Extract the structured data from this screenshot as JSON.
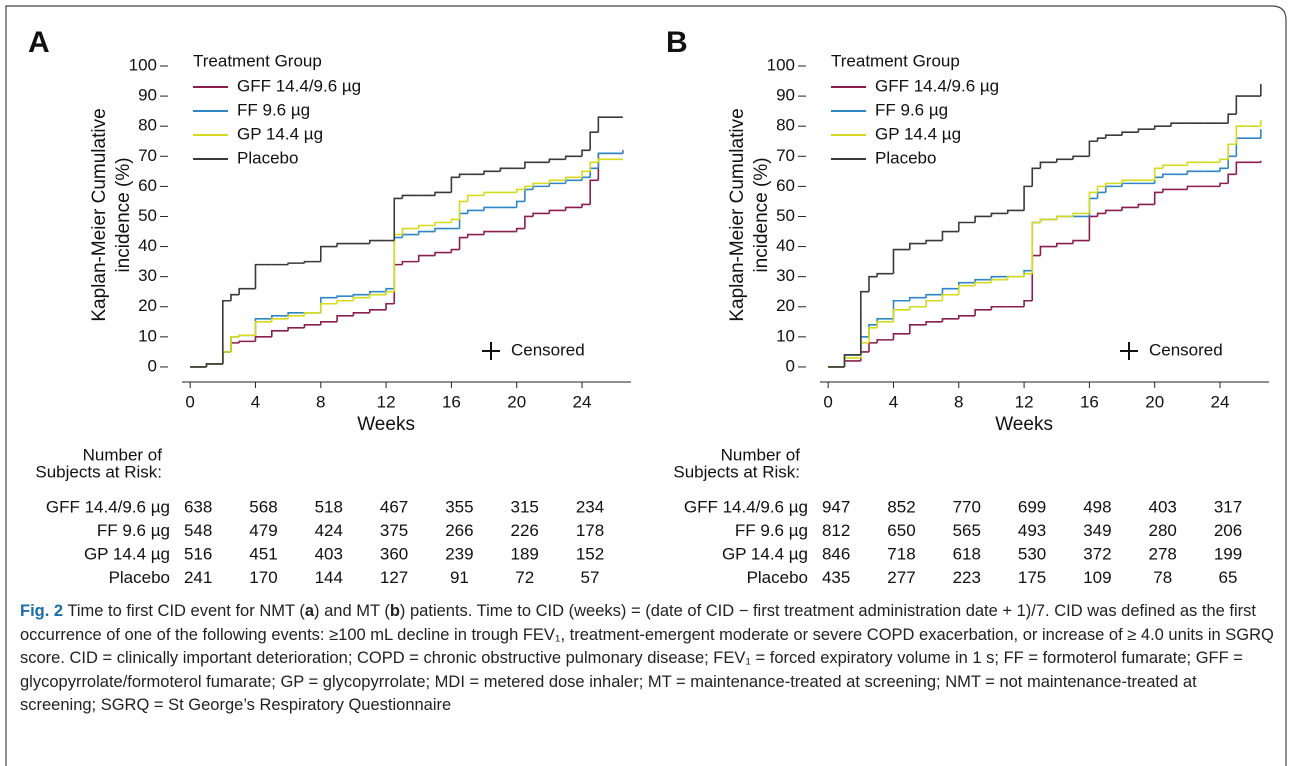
{
  "chart_data": [
    {
      "type": "step",
      "panel_label": "A",
      "ylabel": [
        "Kaplan-Meier Cumulative",
        "incidence (%)"
      ],
      "xlabel": "Weeks",
      "legend_title": "Treatment Group",
      "annotation": "Censored",
      "xlim": [
        -0.5,
        27
      ],
      "ylim": [
        -5,
        100
      ],
      "xticks": [
        0,
        4,
        8,
        12,
        16,
        20,
        24
      ],
      "yticks": [
        0,
        10,
        20,
        30,
        40,
        50,
        60,
        70,
        80,
        90,
        100
      ],
      "x": [
        0,
        1,
        2,
        2.5,
        3,
        4,
        5,
        6,
        7,
        8,
        9,
        10,
        11,
        12,
        12.5,
        13,
        14,
        15,
        16,
        16.5,
        17,
        18,
        19,
        20,
        20.5,
        21,
        22,
        23,
        24,
        24.5,
        25,
        26.5
      ],
      "series": [
        {
          "name": "GFF 14.4/9.6 µg",
          "color": "#8b1e4f",
          "values": [
            0,
            1,
            5,
            8,
            8.5,
            10,
            12,
            13,
            14,
            15,
            17,
            18,
            19,
            21,
            34,
            35,
            37,
            38,
            39,
            43,
            44,
            45,
            45,
            46,
            50,
            51,
            52,
            53,
            54,
            62,
            71,
            72
          ]
        },
        {
          "name": "FF 9.6 µg",
          "color": "#2f86c5",
          "values": [
            0,
            1,
            5,
            10,
            10.5,
            16,
            17,
            18,
            18,
            23,
            23.5,
            24,
            25,
            26,
            43,
            44,
            45,
            46,
            46,
            51,
            52,
            53,
            53,
            55,
            59,
            60,
            61,
            62,
            63,
            66,
            71,
            72
          ]
        },
        {
          "name": "GP 14.4 µg",
          "color": "#d6da1c",
          "values": [
            0,
            1,
            5,
            10,
            10.5,
            15,
            16,
            17,
            18,
            21,
            22,
            23,
            24,
            25,
            44,
            46,
            47,
            48,
            49,
            55,
            57,
            58,
            58,
            59,
            60,
            61,
            62,
            63,
            65,
            68,
            69,
            69
          ]
        },
        {
          "name": "Placebo",
          "color": "#3a3a3a",
          "values": [
            0,
            1,
            22,
            24,
            26,
            34,
            34,
            34.5,
            35,
            40,
            41,
            41,
            42,
            42,
            56,
            57,
            57,
            58,
            63,
            64,
            64,
            65,
            66,
            66,
            68,
            68,
            69,
            70,
            72,
            78,
            83,
            83
          ]
        }
      ],
      "risk_table": {
        "title": [
          "Number of",
          "Subjects at Risk:"
        ],
        "rows": [
          {
            "name": "GFF 14.4/9.6 µg",
            "values": [
              638,
              568,
              518,
              467,
              355,
              315,
              234
            ]
          },
          {
            "name": "FF 9.6 µg",
            "values": [
              548,
              479,
              424,
              375,
              266,
              226,
              178
            ]
          },
          {
            "name": "GP 14.4 µg",
            "values": [
              516,
              451,
              403,
              360,
              239,
              189,
              152
            ]
          },
          {
            "name": "Placebo",
            "values": [
              241,
              170,
              144,
              127,
              91,
              72,
              57
            ]
          }
        ]
      }
    },
    {
      "type": "step",
      "panel_label": "B",
      "ylabel": [
        "Kaplan-Meier Cumulative",
        "incidence (%)"
      ],
      "xlabel": "Weeks",
      "legend_title": "Treatment Group",
      "annotation": "Censored",
      "xlim": [
        -0.5,
        27
      ],
      "ylim": [
        -5,
        100
      ],
      "xticks": [
        0,
        4,
        8,
        12,
        16,
        20,
        24
      ],
      "yticks": [
        0,
        10,
        20,
        30,
        40,
        50,
        60,
        70,
        80,
        90,
        100
      ],
      "x": [
        0,
        1,
        2,
        2.5,
        3,
        4,
        5,
        6,
        7,
        8,
        9,
        10,
        11,
        12,
        12.5,
        13,
        14,
        15,
        16,
        16.5,
        17,
        18,
        19,
        20,
        20.5,
        21,
        22,
        23,
        24,
        24.5,
        25,
        26.5
      ],
      "series": [
        {
          "name": "GFF 14.4/9.6 µg",
          "color": "#8b1e4f",
          "values": [
            0,
            2,
            5,
            8,
            9,
            11,
            14,
            15,
            16,
            17,
            19,
            20,
            20,
            22,
            37,
            40,
            41,
            42,
            50,
            51,
            52,
            53,
            54,
            58,
            59,
            59,
            60,
            60,
            61,
            64,
            68,
            68.5
          ]
        },
        {
          "name": "FF 9.6 µg",
          "color": "#2f86c5",
          "values": [
            0,
            4,
            10,
            14,
            16,
            22,
            23,
            24,
            26,
            28,
            29,
            30,
            30,
            32,
            48,
            49,
            50,
            50,
            56,
            58,
            60,
            61,
            61,
            63,
            64,
            64,
            65,
            65,
            66,
            70,
            76,
            79
          ]
        },
        {
          "name": "GP 14.4 µg",
          "color": "#d6da1c",
          "values": [
            0,
            3,
            8,
            13,
            15,
            19,
            20,
            22,
            24,
            27,
            28,
            29,
            30,
            31,
            48,
            49,
            50,
            51,
            58,
            60,
            61,
            62,
            62,
            66,
            67,
            67,
            68,
            68,
            69,
            74,
            80,
            82
          ]
        },
        {
          "name": "Placebo",
          "color": "#3a3a3a",
          "values": [
            0,
            4,
            25,
            30,
            31,
            39,
            41,
            42,
            45,
            48,
            50,
            51,
            52,
            60,
            66,
            68,
            69,
            70,
            75,
            76,
            77,
            78,
            79,
            80,
            80,
            81,
            81,
            81,
            81,
            84,
            90,
            94
          ]
        }
      ],
      "risk_table": {
        "title": [
          "Number of",
          "Subjects at Risk:"
        ],
        "rows": [
          {
            "name": "GFF 14.4/9.6 µg",
            "values": [
              947,
              852,
              770,
              699,
              498,
              403,
              317
            ]
          },
          {
            "name": "FF 9.6 µg",
            "values": [
              812,
              650,
              565,
              493,
              349,
              280,
              206
            ]
          },
          {
            "name": "GP 14.4 µg",
            "values": [
              846,
              718,
              618,
              530,
              372,
              278,
              199
            ]
          },
          {
            "name": "Placebo",
            "values": [
              435,
              277,
              223,
              175,
              109,
              78,
              65
            ]
          }
        ]
      }
    }
  ],
  "caption": {
    "segments": [
      {
        "text": "Fig. 2",
        "bold": true
      },
      {
        "text": " Time to first CID event for NMT ("
      },
      {
        "text": "a",
        "bold": true
      },
      {
        "text": ") and MT ("
      },
      {
        "text": "b",
        "bold": true
      },
      {
        "text": ") patients. Time to CID (weeks) = (date of CID − first treatment administration date + 1)/7. CID was defined as the first occurrence of one of the following events: ≥100 mL decline in trough FEV₁, treatment-emergent moderate or severe COPD exacerbation, or increase of ≥ 4.0 units in SGRQ score. CID = clinically important deterioration; COPD = chronic obstructive pulmonary disease; FEV₁ = forced expiratory volume in 1 s; FF = formoterol fumarate; GFF = glycopyrrolate/formoterol fumarate; GP = glycopyrrolate; MDI = metered dose inhaler; MT = maintenance-treated at screening; NMT = not maintenance-treated at screening; SGRQ = St George’s Respiratory Questionnaire"
      }
    ]
  }
}
